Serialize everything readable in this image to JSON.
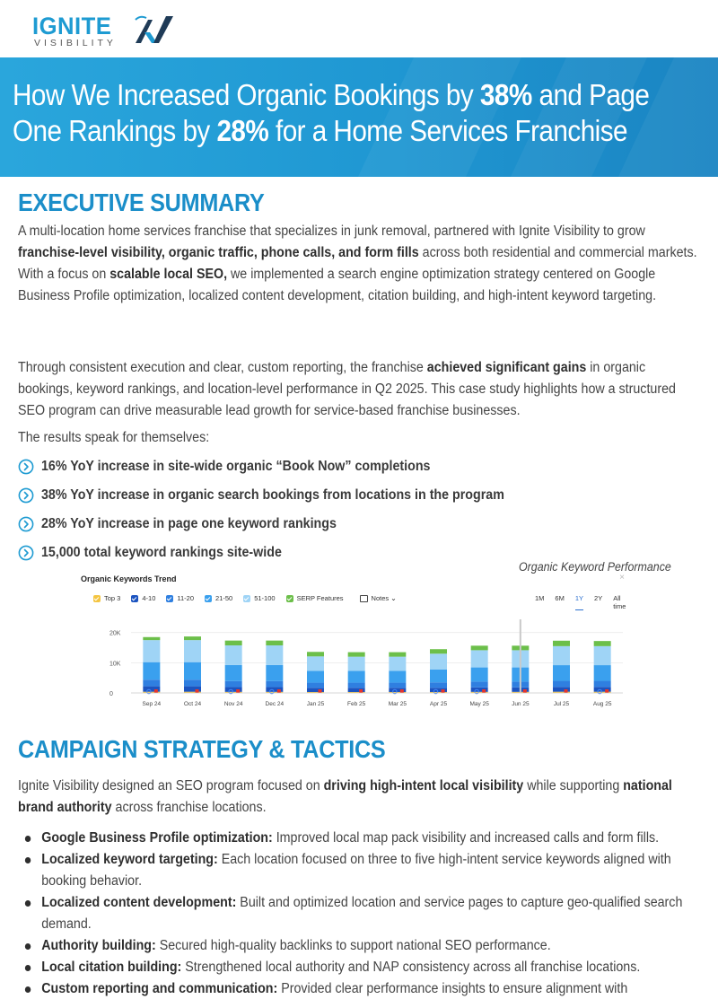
{
  "brand": {
    "name": "IGNITE",
    "tagline": "VISIBILITY",
    "blue": "#1e9bd2",
    "navy": "#1f3b57"
  },
  "hero": {
    "line1_a": "How We Increased Organic Bookings by ",
    "line1_b": "38%",
    "line1_c": " and Page",
    "line2_a": "One Rankings by ",
    "line2_b": "28%",
    "line2_c": " for a Home Services Franchise"
  },
  "executive_summary": {
    "title": "EXECUTIVE SUMMARY",
    "p1": [
      {
        "t": "A multi-location home services franchise that specializes in junk removal, partnered with Ignite Visibility to grow ",
        "b": false
      },
      {
        "t": "franchise-level visibility, organic traffic, phone calls, and form fills",
        "b": true
      },
      {
        "t": " across both residential and commercial markets. With a focus on ",
        "b": false
      },
      {
        "t": "scalable local SEO,",
        "b": true
      },
      {
        "t": " we implemented a search engine optimization strategy centered on Google Business Profile optimization, localized content development, citation building, and high-intent keyword targeting.",
        "b": false
      }
    ],
    "p2": [
      {
        "t": "Through consistent execution and clear, custom reporting, the franchise ",
        "b": false
      },
      {
        "t": "achieved significant gains",
        "b": true
      },
      {
        "t": " in organic bookings, keyword rankings, and location-level performance in Q2 2025. This case study highlights how a structured SEO program can drive measurable lead growth for service-based franchise businesses.",
        "b": false
      }
    ],
    "results_intro": "The results speak for themselves:",
    "results": [
      "16% YoY increase in site-wide organic “Book Now” completions",
      "38% YoY increase in organic search bookings from locations in the program",
      "28% YoY increase in page one keyword rankings",
      "15,000 total keyword rankings site-wide"
    ]
  },
  "chart_caption": "Organic Keyword Performance",
  "chart_data": {
    "type": "bar",
    "title": "Organic Keywords Trend",
    "close_glyph": "×",
    "legend": [
      {
        "name": "Top 3",
        "color": "#f4c542"
      },
      {
        "name": "4-10",
        "color": "#1c54c0"
      },
      {
        "name": "11-20",
        "color": "#2f7fe0"
      },
      {
        "name": "21-50",
        "color": "#3aa0ee"
      },
      {
        "name": "51-100",
        "color": "#9fd4f6"
      },
      {
        "name": "SERP Features",
        "color": "#6cbf4a"
      }
    ],
    "notes_label": "Notes",
    "ranges": [
      "1M",
      "6M",
      "1Y",
      "2Y",
      "All time"
    ],
    "active_range": "1Y",
    "categories": [
      "Sep 24",
      "Oct 24",
      "Nov 24",
      "Dec 24",
      "Jan 25",
      "Feb 25",
      "Mar 25",
      "Apr 25",
      "May 25",
      "Jun 25",
      "Jul 25",
      "Aug 25"
    ],
    "series": [
      {
        "name": "Top 3",
        "values": [
          400,
          400,
          350,
          350,
          300,
          300,
          300,
          300,
          350,
          350,
          400,
          400
        ]
      },
      {
        "name": "4-10",
        "values": [
          1800,
          1800,
          1600,
          1600,
          1400,
          1400,
          1400,
          1400,
          1500,
          1500,
          1600,
          1600
        ]
      },
      {
        "name": "11-20",
        "values": [
          2200,
          2200,
          2000,
          2000,
          1700,
          1700,
          1700,
          1800,
          1900,
          1900,
          2000,
          2000
        ]
      },
      {
        "name": "21-50",
        "values": [
          5800,
          5800,
          5300,
          5300,
          3900,
          3900,
          3900,
          4300,
          4700,
          4700,
          5200,
          5200
        ]
      },
      {
        "name": "51-100",
        "values": [
          7300,
          7300,
          6500,
          6500,
          4800,
          4700,
          4700,
          5200,
          5700,
          5700,
          6300,
          6300
        ]
      },
      {
        "name": "SERP Features",
        "values": [
          1000,
          1200,
          1600,
          1600,
          1500,
          1500,
          1500,
          1500,
          1500,
          1500,
          1800,
          1700
        ]
      }
    ],
    "yticks": [
      {
        "value": 20000,
        "label": "20K"
      },
      {
        "value": 10000,
        "label": "10K"
      },
      {
        "value": 0,
        "label": "0"
      }
    ],
    "ylim": [
      0,
      22000
    ],
    "google_note_months": [
      "Sep 24",
      "Nov 24",
      "Dec 24",
      "Mar 25",
      "Apr 25",
      "May 25",
      "Aug 25"
    ],
    "grid": true
  },
  "campaign": {
    "title": "CAMPAIGN STRATEGY & TACTICS",
    "intro": [
      {
        "t": "Ignite Visibility designed an SEO program focused on ",
        "b": false
      },
      {
        "t": "driving high-intent local visibility",
        "b": true
      },
      {
        "t": " while supporting ",
        "b": false
      },
      {
        "t": "national brand authority",
        "b": true
      },
      {
        "t": " across franchise locations.",
        "b": false
      }
    ],
    "bullets": [
      {
        "label": "Google Business Profile optimization:",
        "text": " Improved local map pack visibility and increased calls and form fills."
      },
      {
        "label": "Localized keyword targeting:",
        "text": " Each location focused on three to five high-intent service keywords aligned with booking behavior."
      },
      {
        "label": "Localized content development:",
        "text": " Built and optimized location and service pages to capture geo-qualified search demand."
      },
      {
        "label": "Authority building:",
        "text": " Secured high-quality backlinks to support national SEO performance."
      },
      {
        "label": "Local citation building:",
        "text": " Strengthened local authority and NAP consistency across all franchise locations."
      },
      {
        "label": "Custom reporting and communication:",
        "text": " Provided clear performance insights to ensure alignment with"
      }
    ]
  }
}
